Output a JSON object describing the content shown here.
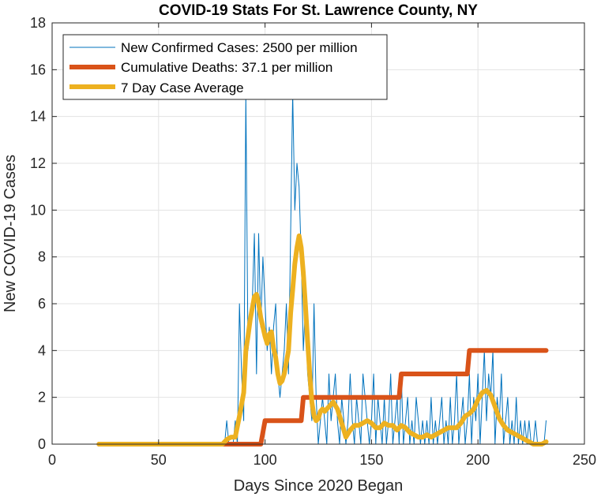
{
  "chart_data": {
    "type": "line",
    "title": "COVID-19 Stats For St. Lawrence County, NY",
    "xlabel": "Days Since 2020 Began",
    "ylabel": "New COVID-19 Cases",
    "xlim": [
      0,
      250
    ],
    "ylim": [
      0,
      18
    ],
    "xticks": [
      0,
      50,
      100,
      150,
      200,
      250
    ],
    "yticks": [
      0,
      2,
      4,
      6,
      8,
      10,
      12,
      14,
      16,
      18
    ],
    "grid": true,
    "legend_position": "top-left",
    "series": [
      {
        "name": "New Confirmed Cases: 2500 per million",
        "color": "#0072bd",
        "x": [
          22,
          80,
          81,
          82,
          83,
          84,
          85,
          86,
          87,
          88,
          89,
          90,
          91,
          92,
          93,
          94,
          95,
          96,
          97,
          98,
          99,
          100,
          101,
          102,
          103,
          104,
          105,
          106,
          107,
          108,
          109,
          110,
          111,
          112,
          113,
          114,
          115,
          116,
          117,
          118,
          119,
          120,
          121,
          122,
          123,
          124,
          125,
          126,
          127,
          128,
          129,
          130,
          131,
          132,
          133,
          134,
          135,
          136,
          137,
          138,
          139,
          140,
          141,
          142,
          143,
          144,
          145,
          146,
          147,
          148,
          149,
          150,
          151,
          152,
          153,
          154,
          155,
          156,
          157,
          158,
          159,
          160,
          161,
          162,
          163,
          164,
          165,
          166,
          167,
          168,
          169,
          170,
          171,
          172,
          173,
          174,
          175,
          176,
          177,
          178,
          179,
          180,
          181,
          182,
          183,
          184,
          185,
          186,
          187,
          188,
          189,
          190,
          191,
          192,
          193,
          194,
          195,
          196,
          197,
          198,
          199,
          200,
          201,
          202,
          203,
          204,
          205,
          206,
          207,
          208,
          209,
          210,
          211,
          212,
          213,
          214,
          215,
          216,
          217,
          218,
          219,
          220,
          221,
          222,
          223,
          224,
          225,
          226,
          227,
          228,
          229,
          230,
          231,
          232
        ],
        "y": [
          0,
          0,
          0,
          1,
          0,
          0,
          0,
          1,
          0,
          6,
          3,
          1,
          15,
          4,
          5,
          6,
          9,
          3,
          9,
          5,
          8,
          6,
          4,
          5,
          3,
          5,
          6,
          3,
          2,
          3,
          4,
          6,
          3,
          9,
          15,
          10,
          12,
          11,
          8,
          4,
          6,
          3,
          2,
          1,
          6,
          2,
          0,
          1,
          2,
          1,
          0,
          3,
          1,
          2,
          3,
          1,
          0,
          2,
          1,
          0,
          1,
          3,
          1,
          0,
          2,
          1,
          0,
          3,
          2,
          1,
          0,
          1,
          3,
          0,
          2,
          1,
          0,
          2,
          0,
          1,
          3,
          0,
          1,
          2,
          0,
          3,
          0,
          1,
          2,
          0,
          1,
          0,
          2,
          1,
          0,
          1,
          0,
          1,
          0,
          2,
          0,
          1,
          0,
          1,
          2,
          0,
          1,
          0,
          2,
          0,
          1,
          3,
          0,
          1,
          2,
          0,
          1,
          3,
          0,
          2,
          1,
          3,
          0,
          2,
          4,
          1,
          3,
          2,
          4,
          0,
          2,
          1,
          3,
          0,
          1,
          2,
          0,
          1,
          0,
          2,
          0,
          1,
          0,
          1,
          0,
          1,
          0,
          0,
          1,
          0,
          0,
          0,
          0,
          1
        ]
      },
      {
        "name": "Cumulative Deaths: 37.1 per million",
        "color": "#d95319",
        "x": [
          22,
          98,
          100,
          117,
          118,
          163,
          164,
          195,
          196,
          232
        ],
        "y": [
          0,
          0,
          1,
          1,
          2,
          2,
          3,
          3,
          4,
          4
        ]
      },
      {
        "name": "7 Day Case Average",
        "color": "#edb120",
        "x": [
          22,
          80,
          82,
          84,
          86,
          88,
          89,
          90,
          91,
          92,
          93,
          94,
          95,
          96,
          97,
          98,
          99,
          100,
          101,
          102,
          103,
          104,
          105,
          106,
          107,
          108,
          109,
          110,
          111,
          112,
          113,
          114,
          115,
          116,
          117,
          118,
          119,
          120,
          121,
          122,
          123,
          124,
          125,
          126,
          127,
          128,
          130,
          132,
          134,
          136,
          138,
          140,
          142,
          144,
          146,
          148,
          150,
          152,
          154,
          156,
          158,
          160,
          162,
          164,
          166,
          168,
          170,
          172,
          174,
          176,
          178,
          180,
          182,
          184,
          186,
          188,
          190,
          192,
          194,
          196,
          198,
          200,
          202,
          204,
          206,
          208,
          210,
          212,
          214,
          216,
          218,
          220,
          222,
          224,
          226,
          228,
          230,
          232
        ],
        "y": [
          0,
          0,
          0.2,
          0.3,
          0.3,
          1.2,
          1.7,
          2.2,
          4.0,
          4.6,
          5.3,
          5.8,
          6.3,
          6.4,
          6.0,
          5.4,
          5.0,
          4.6,
          4.3,
          4.7,
          4.8,
          4.1,
          3.7,
          3.0,
          2.6,
          2.7,
          3.0,
          3.5,
          4.0,
          5.6,
          6.6,
          7.7,
          8.4,
          8.9,
          8.4,
          7.3,
          5.9,
          4.4,
          3.0,
          1.8,
          1.2,
          1.0,
          1.1,
          1.4,
          1.5,
          1.4,
          1.6,
          1.8,
          1.5,
          0.9,
          0.3,
          0.6,
          0.8,
          0.8,
          0.9,
          1.0,
          0.9,
          0.7,
          0.7,
          0.9,
          0.8,
          0.8,
          0.6,
          0.8,
          0.7,
          0.5,
          0.4,
          0.3,
          0.3,
          0.4,
          0.3,
          0.4,
          0.5,
          0.6,
          0.7,
          0.7,
          0.7,
          0.9,
          1.2,
          1.3,
          1.5,
          1.9,
          2.2,
          2.3,
          2.1,
          1.6,
          1.1,
          0.8,
          0.6,
          0.5,
          0.4,
          0.3,
          0.2,
          0.1,
          0,
          0,
          0,
          0.1
        ]
      }
    ]
  }
}
